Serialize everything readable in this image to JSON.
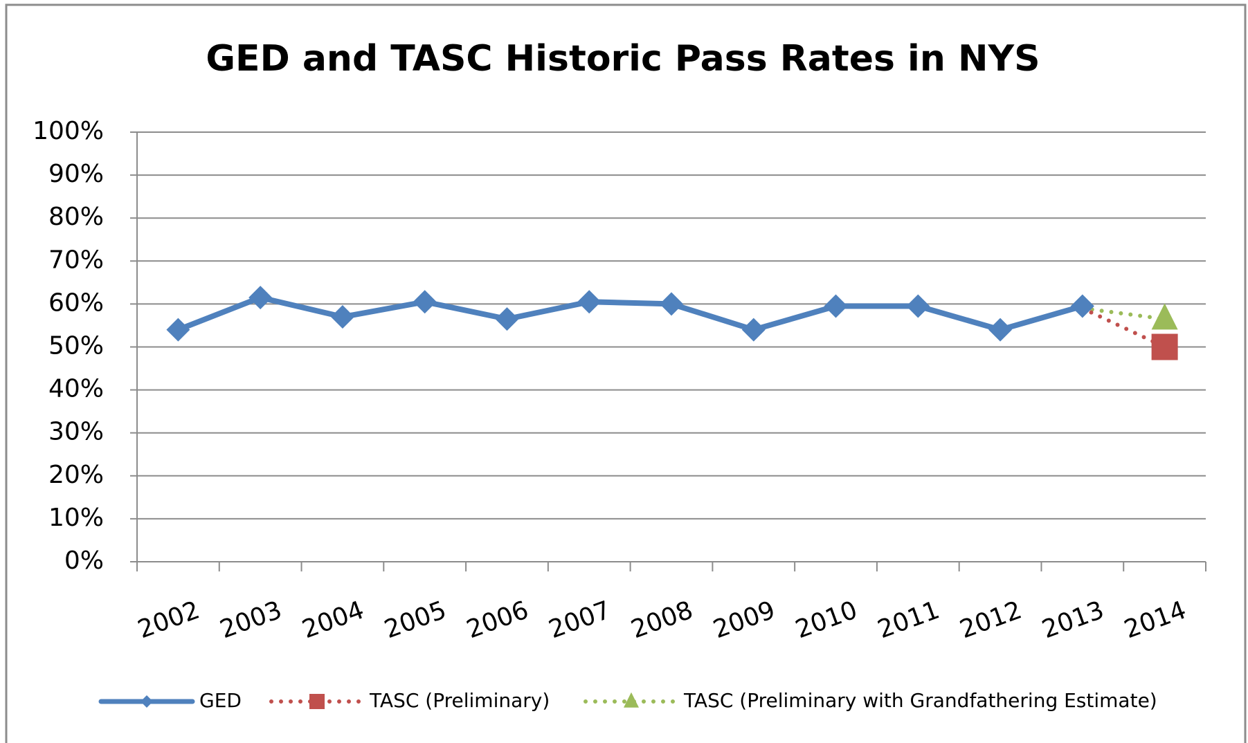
{
  "chart_data": {
    "type": "line",
    "title": "GED and TASC Historic Pass Rates in NYS",
    "categories": [
      "2002",
      "2003",
      "2004",
      "2005",
      "2006",
      "2007",
      "2008",
      "2009",
      "2010",
      "2011",
      "2012",
      "2013",
      "2014"
    ],
    "series": [
      {
        "name": "GED",
        "color": "#4f81bd",
        "style": "solid",
        "marker": "diamond",
        "values": [
          54,
          61.5,
          57,
          60.5,
          56.5,
          60.5,
          60,
          54,
          59.5,
          59.5,
          54,
          59.5,
          null
        ]
      },
      {
        "name": "TASC (Preliminary)",
        "color": "#c0504d",
        "style": "dotted",
        "marker": "square",
        "markers": "last",
        "values": [
          null,
          null,
          null,
          null,
          null,
          null,
          null,
          null,
          null,
          null,
          null,
          59,
          50
        ]
      },
      {
        "name": "TASC (Preliminary with Grandfathering Estimate)",
        "color": "#9bbb59",
        "style": "dotted",
        "marker": "triangle",
        "markers": "last",
        "values": [
          null,
          null,
          null,
          null,
          null,
          null,
          null,
          null,
          null,
          null,
          null,
          59,
          56.5
        ]
      }
    ],
    "ylim": [
      0,
      100
    ],
    "yticks": [
      {
        "value": 0,
        "label": "0%"
      },
      {
        "value": 10,
        "label": "10%"
      },
      {
        "value": 20,
        "label": "20%"
      },
      {
        "value": 30,
        "label": "30%"
      },
      {
        "value": 40,
        "label": "40%"
      },
      {
        "value": 50,
        "label": "50%"
      },
      {
        "value": 60,
        "label": "60%"
      },
      {
        "value": 70,
        "label": "70%"
      },
      {
        "value": 80,
        "label": "80%"
      },
      {
        "value": 90,
        "label": "90%"
      },
      {
        "value": 100,
        "label": "100%"
      }
    ],
    "grid": true,
    "legend": "bottom"
  }
}
